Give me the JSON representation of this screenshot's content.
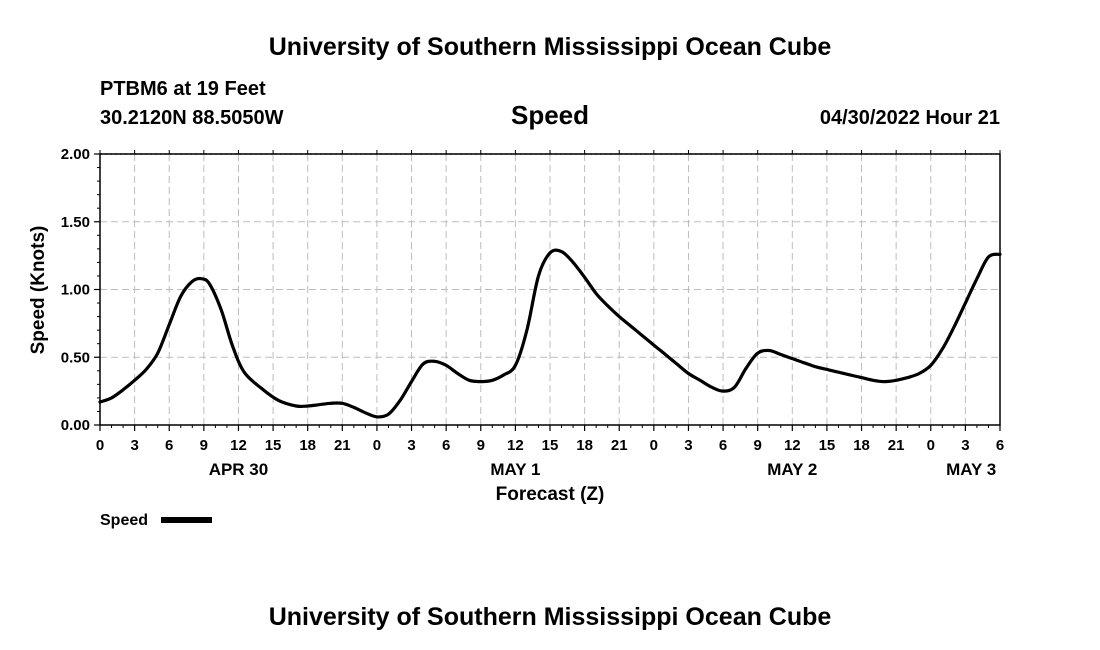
{
  "page": {
    "title": "University of Southern Mississippi Ocean Cube",
    "footer_title": "University of Southern Mississippi Ocean Cube",
    "station": "PTBM6 at 19 Feet",
    "location": "30.2120N  88.5050W",
    "variable": "Speed",
    "timestamp": "04/30/2022 Hour 21"
  },
  "chart_data": {
    "type": "line",
    "title": "Speed",
    "xlabel": "Forecast (Z)",
    "ylabel": "Speed (Knots)",
    "ylim": [
      0,
      2
    ],
    "xlim": [
      0,
      78
    ],
    "yticks": [
      "0.00",
      "0.50",
      "1.00",
      "1.50",
      "2.00"
    ],
    "ytick_values": [
      0,
      0.5,
      1.0,
      1.5,
      2.0
    ],
    "xtick_labels": [
      "0",
      "3",
      "6",
      "9",
      "12",
      "15",
      "18",
      "21",
      "0",
      "3",
      "6",
      "9",
      "12",
      "15",
      "18",
      "21",
      "0",
      "3",
      "6",
      "9",
      "12",
      "15",
      "18",
      "21",
      "0",
      "3",
      "6"
    ],
    "day_labels": [
      {
        "label": "APR 30",
        "at_hour": 12
      },
      {
        "label": "MAY 1",
        "at_hour": 36
      },
      {
        "label": "MAY 2",
        "at_hour": 60
      },
      {
        "label": "MAY 3",
        "at_hour": 75.5
      }
    ],
    "grid": true,
    "legend": {
      "position": "bottom-left",
      "label": "Speed"
    },
    "series": [
      {
        "name": "Speed",
        "color": "#000000",
        "x": [
          0,
          1,
          2,
          3,
          4,
          5,
          6,
          7,
          8,
          8.8,
          9.5,
          10.5,
          11.5,
          12.5,
          14,
          15.5,
          17,
          18,
          19,
          20,
          21,
          22,
          23,
          24,
          25,
          26,
          27,
          28,
          29,
          30,
          31,
          32,
          33,
          34,
          35,
          36,
          37,
          38,
          39,
          40,
          41,
          42,
          43,
          44,
          45,
          46,
          47,
          48,
          49,
          50,
          51,
          52,
          53,
          54,
          55,
          56,
          57,
          58,
          59,
          60,
          61,
          62,
          63,
          64,
          65,
          66,
          67,
          68,
          69,
          70,
          71,
          72,
          73,
          74,
          75,
          76,
          77,
          78
        ],
        "y": [
          0.17,
          0.2,
          0.26,
          0.33,
          0.41,
          0.53,
          0.74,
          0.95,
          1.06,
          1.08,
          1.04,
          0.85,
          0.58,
          0.39,
          0.27,
          0.18,
          0.14,
          0.14,
          0.15,
          0.16,
          0.16,
          0.13,
          0.09,
          0.06,
          0.08,
          0.18,
          0.32,
          0.45,
          0.47,
          0.44,
          0.38,
          0.33,
          0.32,
          0.33,
          0.37,
          0.44,
          0.7,
          1.1,
          1.27,
          1.28,
          1.2,
          1.09,
          0.97,
          0.88,
          0.8,
          0.73,
          0.66,
          0.59,
          0.52,
          0.45,
          0.38,
          0.33,
          0.28,
          0.25,
          0.28,
          0.42,
          0.53,
          0.55,
          0.52,
          0.49,
          0.46,
          0.43,
          0.41,
          0.39,
          0.37,
          0.35,
          0.33,
          0.32,
          0.33,
          0.35,
          0.38,
          0.44,
          0.56,
          0.72,
          0.9,
          1.08,
          1.24,
          1.26
        ]
      }
    ]
  }
}
